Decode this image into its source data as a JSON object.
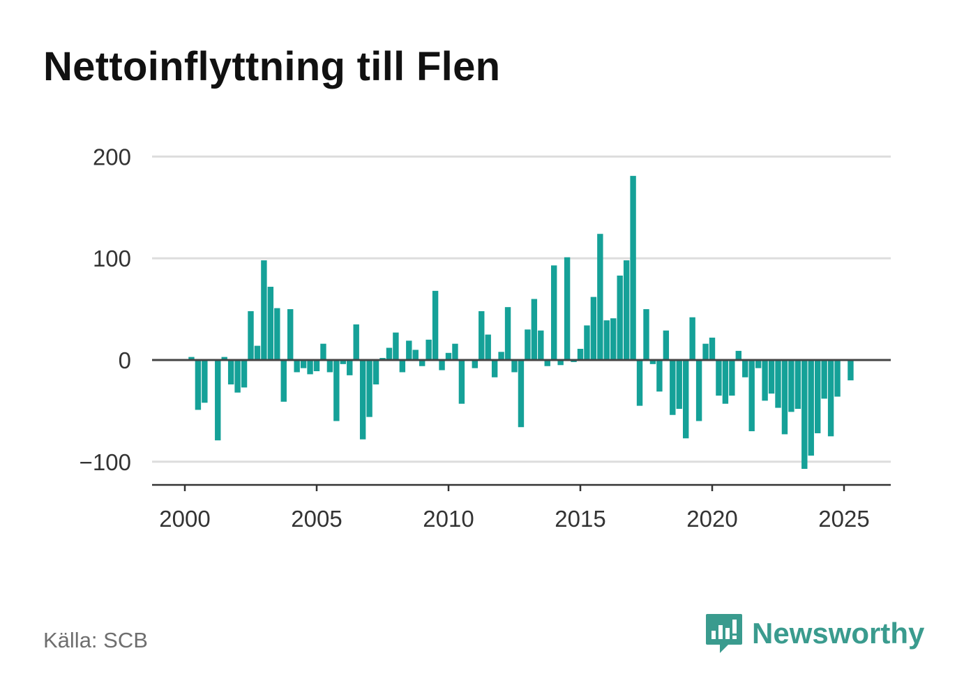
{
  "title": "Nettoinflyttning till Flen",
  "source": "Källa: SCB",
  "brand": {
    "name": "Newsworthy",
    "icon": "newsworthy-logo-icon",
    "color": "#3a9b8e"
  },
  "colors": {
    "bar": "#15a198",
    "grid": "#dddddd",
    "zero": "#444444",
    "axis": "#333333"
  },
  "chart_data": {
    "type": "bar",
    "title": "Nettoinflyttning till Flen",
    "xlabel": "",
    "ylabel": "",
    "ylim": [
      -120,
      200
    ],
    "xlim": [
      2000,
      2027
    ],
    "grid": true,
    "y_ticks": [
      200,
      100,
      0,
      -100
    ],
    "y_tick_labels": [
      "200",
      "100",
      "0",
      "−100"
    ],
    "x_ticks": [
      2000,
      2005,
      2010,
      2015,
      2020,
      2025
    ],
    "x_tick_labels": [
      "2000",
      "2005",
      "2010",
      "2015",
      "2020",
      "2025"
    ],
    "frequency": "quarterly",
    "start_quarter": "2000 Q2",
    "values": [
      3,
      -49,
      -42,
      0,
      -79,
      3,
      -24,
      -32,
      -27,
      48,
      14,
      98,
      72,
      51,
      -41,
      50,
      -12,
      -8,
      -14,
      -11,
      16,
      -12,
      -60,
      -4,
      -15,
      35,
      -78,
      -56,
      -24,
      2,
      12,
      27,
      -12,
      19,
      10,
      -6,
      20,
      68,
      -10,
      7,
      16,
      -43,
      0,
      -8,
      48,
      25,
      -17,
      8,
      52,
      -12,
      -66,
      30,
      60,
      29,
      -6,
      93,
      -5,
      101,
      -2,
      11,
      34,
      62,
      124,
      39,
      41,
      83,
      98,
      181,
      -45,
      50,
      -4,
      -31,
      29,
      -54,
      -48,
      -77,
      42,
      -60,
      16,
      22,
      -35,
      -43,
      -35,
      9,
      -17,
      -70,
      -8,
      -40,
      -33,
      -47,
      -73,
      -51,
      -48,
      -107,
      -94,
      -72,
      -38,
      -75,
      -36,
      0,
      -20
    ]
  }
}
